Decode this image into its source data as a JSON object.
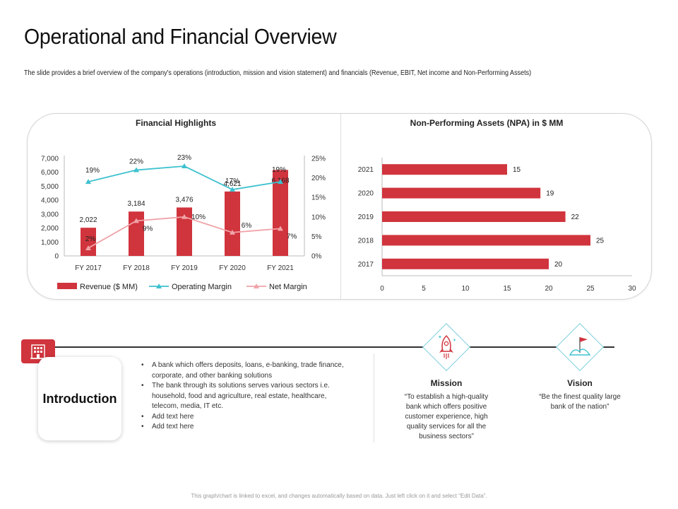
{
  "slide": {
    "title": "Operational and Financial Overview",
    "subtitle": "The slide provides a brief overview of the company's operations (introduction, mission and vision statement) and financials  (Revenue, EBIT, Net income and Non-Performing Assets)"
  },
  "colors": {
    "revenue": "#d0343d",
    "operating_margin": "#3ec1cf",
    "net_margin": "#f0a3a8",
    "npa_bar": "#d0343d",
    "accent_line": "#7fd0de"
  },
  "chart_data": [
    {
      "type": "bar",
      "title": "Financial Highlights",
      "categories": [
        "FY 2017",
        "FY 2018",
        "FY 2019",
        "FY 2020",
        "FY 2021"
      ],
      "y_left_ticks": [
        "0",
        "1,000",
        "2,000",
        "3,000",
        "4,000",
        "5,000",
        "6,000",
        "7,000"
      ],
      "y_right_ticks": [
        "0%",
        "5%",
        "10%",
        "15%",
        "20%",
        "25%"
      ],
      "ylim_left": [
        0,
        7000
      ],
      "ylim_right": [
        0,
        25
      ],
      "legend_position": "bottom",
      "series": [
        {
          "name": "Revenue ($ MM)",
          "kind": "bar",
          "axis": "left",
          "values": [
            2022,
            3184,
            3476,
            4621,
            6168
          ],
          "labels": [
            "2,022",
            "3,184",
            "3,476",
            "4,621",
            "6,168"
          ]
        },
        {
          "name": "Operating Margin",
          "kind": "line",
          "axis": "right",
          "values": [
            19,
            22,
            23,
            17,
            19
          ],
          "labels": [
            "19%",
            "22%",
            "23%",
            "17%",
            "19%"
          ]
        },
        {
          "name": "Net Margin",
          "kind": "line",
          "axis": "right",
          "values": [
            2,
            9,
            10,
            6,
            7
          ],
          "labels": [
            "2%",
            "9%",
            "10%",
            "6%",
            "7%"
          ]
        }
      ]
    },
    {
      "type": "bar",
      "orientation": "horizontal",
      "title": "Non-Performing Assets (NPA) in $ MM",
      "categories": [
        "2021",
        "2020",
        "2019",
        "2018",
        "2017"
      ],
      "values": [
        15,
        19,
        22,
        25,
        20
      ],
      "labels": [
        "15",
        "19",
        "22",
        "25",
        "20"
      ],
      "x_ticks": [
        "0",
        "5",
        "10",
        "15",
        "20",
        "25",
        "30"
      ],
      "xlim": [
        0,
        30
      ]
    }
  ],
  "introduction": {
    "label": "Introduction",
    "icon": "building-icon",
    "bullets": [
      "A bank which offers deposits, loans, e-banking, trade finance, corporate, and other banking solutions",
      "The bank through its solutions serves various sectors i.e. household, food and agriculture, real estate, healthcare, telecom, media, IT etc.",
      "Add text here",
      "Add text here"
    ]
  },
  "mission": {
    "heading": "Mission",
    "icon": "rocket-icon",
    "text": "“To establish a high-quality bank which offers positive customer experience, high quality services for all the business sectors”"
  },
  "vision": {
    "heading": "Vision",
    "icon": "flag-mountain-icon",
    "text": "“Be the finest quality large bank of the nation”"
  },
  "footer": {
    "note": "This graph/chart is linked to excel, and changes automatically based on data. Just left click on it and select “Edit Data”."
  }
}
